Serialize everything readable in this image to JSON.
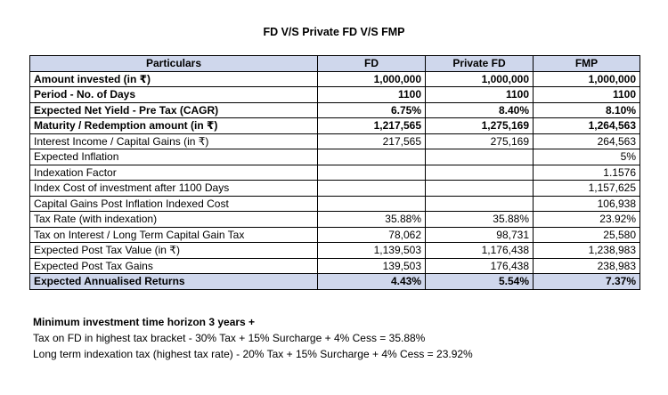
{
  "title": "FD V/S Private FD V/S FMP",
  "table": {
    "headers": [
      "Particulars",
      "FD",
      "Private FD",
      "FMP"
    ],
    "rows": [
      {
        "label": "Amount invested (in ₹)",
        "fd": "1,000,000",
        "pfd": "1,000,000",
        "fmp": "1,000,000",
        "bold": true,
        "shade": false
      },
      {
        "label": "Period - No. of Days",
        "fd": "1100",
        "pfd": "1100",
        "fmp": "1100",
        "bold": true,
        "shade": false
      },
      {
        "label": "Expected Net Yield - Pre Tax (CAGR)",
        "fd": "6.75%",
        "pfd": "8.40%",
        "fmp": "8.10%",
        "bold": true,
        "shade": false
      },
      {
        "label": "Maturity / Redemption amount (in ₹)",
        "fd": "1,217,565",
        "pfd": "1,275,169",
        "fmp": "1,264,563",
        "bold": true,
        "shade": false
      },
      {
        "label": "Interest Income / Capital Gains (in ₹)",
        "fd": "217,565",
        "pfd": "275,169",
        "fmp": "264,563",
        "bold": false,
        "shade": false
      },
      {
        "label": "Expected Inflation",
        "fd": "",
        "pfd": "",
        "fmp": "5%",
        "bold": false,
        "shade": false
      },
      {
        "label": "Indexation Factor",
        "fd": "",
        "pfd": "",
        "fmp": "1.1576",
        "bold": false,
        "shade": false
      },
      {
        "label": "Index Cost of investment after 1100 Days",
        "fd": "",
        "pfd": "",
        "fmp": "1,157,625",
        "bold": false,
        "shade": false
      },
      {
        "label": "Capital Gains Post Inflation Indexed Cost",
        "fd": "",
        "pfd": "",
        "fmp": "106,938",
        "bold": false,
        "shade": false
      },
      {
        "label": "Tax Rate (with indexation)",
        "fd": "35.88%",
        "pfd": "35.88%",
        "fmp": "23.92%",
        "bold": false,
        "shade": false
      },
      {
        "label": "Tax on Interest / Long Term Capital Gain Tax",
        "fd": "78,062",
        "pfd": "98,731",
        "fmp": "25,580",
        "bold": false,
        "shade": false
      },
      {
        "label": "Expected Post Tax Value (in ₹)",
        "fd": "1,139,503",
        "pfd": "1,176,438",
        "fmp": "1,238,983",
        "bold": false,
        "shade": false
      },
      {
        "label": "Expected Post Tax Gains",
        "fd": "139,503",
        "pfd": "176,438",
        "fmp": "238,983",
        "bold": false,
        "shade": false
      },
      {
        "label": "Expected Annualised Returns",
        "fd": "4.43%",
        "pfd": "5.54%",
        "fmp": "7.37%",
        "bold": true,
        "shade": true
      }
    ]
  },
  "notes": {
    "heading": "Minimum investment time horizon 3 years +",
    "line1": "Tax on FD in highest tax bracket - 30% Tax + 15% Surcharge + 4% Cess = 35.88%",
    "line2": "Long term indexation tax (highest tax rate) - 20% Tax + 15% Surcharge + 4% Cess = 23.92%"
  },
  "colors": {
    "header_fill": "#cfd7ec",
    "border": "#000000"
  }
}
